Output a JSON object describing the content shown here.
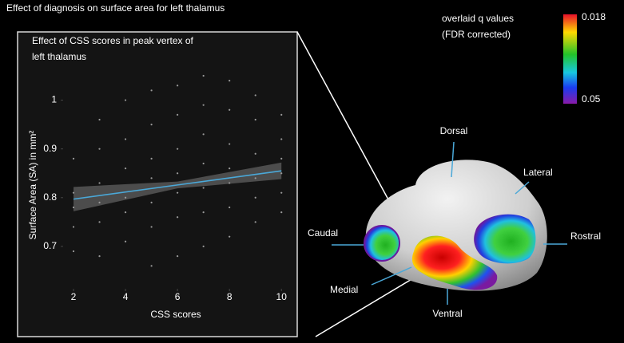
{
  "header": {
    "title": "Effect of diagnosis on surface area for left thalamus"
  },
  "chart_data": {
    "type": "scatter",
    "title": [
      "Effect of CSS scores in peak vertex of",
      "left thalamus"
    ],
    "x_label": "CSS scores",
    "y_label": "Surface Area (SA) in mm²",
    "x": [
      2,
      2,
      2,
      2,
      2,
      3,
      3,
      3,
      3,
      3,
      3,
      4,
      4,
      4,
      4,
      4,
      4,
      5,
      5,
      5,
      5,
      5,
      5,
      5,
      6,
      6,
      6,
      6,
      6,
      6,
      6,
      7,
      7,
      7,
      7,
      7,
      7,
      7,
      8,
      8,
      8,
      8,
      8,
      8,
      8,
      9,
      9,
      9,
      9,
      9,
      9,
      10,
      10,
      10,
      10,
      10,
      10
    ],
    "y": [
      0.88,
      0.81,
      0.78,
      0.74,
      0.69,
      0.96,
      0.9,
      0.83,
      0.79,
      0.75,
      0.68,
      1.0,
      0.92,
      0.86,
      0.8,
      0.77,
      0.71,
      1.02,
      0.95,
      0.88,
      0.84,
      0.79,
      0.74,
      0.66,
      1.03,
      0.97,
      0.9,
      0.85,
      0.81,
      0.76,
      0.68,
      1.05,
      0.99,
      0.93,
      0.87,
      0.82,
      0.77,
      0.7,
      1.04,
      0.98,
      0.91,
      0.86,
      0.83,
      0.78,
      0.72,
      1.01,
      0.96,
      0.89,
      0.84,
      0.8,
      0.75,
      0.97,
      0.92,
      0.88,
      0.85,
      0.81,
      0.77
    ],
    "point_color": "#9a9a9a",
    "fit": {
      "x": [
        2,
        6,
        10
      ],
      "y": [
        0.797,
        0.826,
        0.855
      ],
      "lower": [
        0.772,
        0.819,
        0.838
      ],
      "upper": [
        0.822,
        0.833,
        0.872
      ],
      "color": "#4aa8d8",
      "band_color": "#5a5a5a"
    },
    "xlim": [
      1.6,
      10.3
    ],
    "ylim": [
      0.6,
      1.05
    ],
    "xticks": [
      2,
      4,
      6,
      8,
      10
    ],
    "yticks": [
      0.7,
      0.8,
      0.9,
      1.0
    ],
    "grid": false
  },
  "render": {
    "labels": [
      "Dorsal",
      "Lateral",
      "Rostral",
      "Caudal",
      "Medial",
      "Ventral"
    ]
  },
  "colorbar": {
    "title": [
      "overlaid q values",
      "(FDR corrected)"
    ],
    "range": [
      0.018,
      0.05
    ]
  }
}
